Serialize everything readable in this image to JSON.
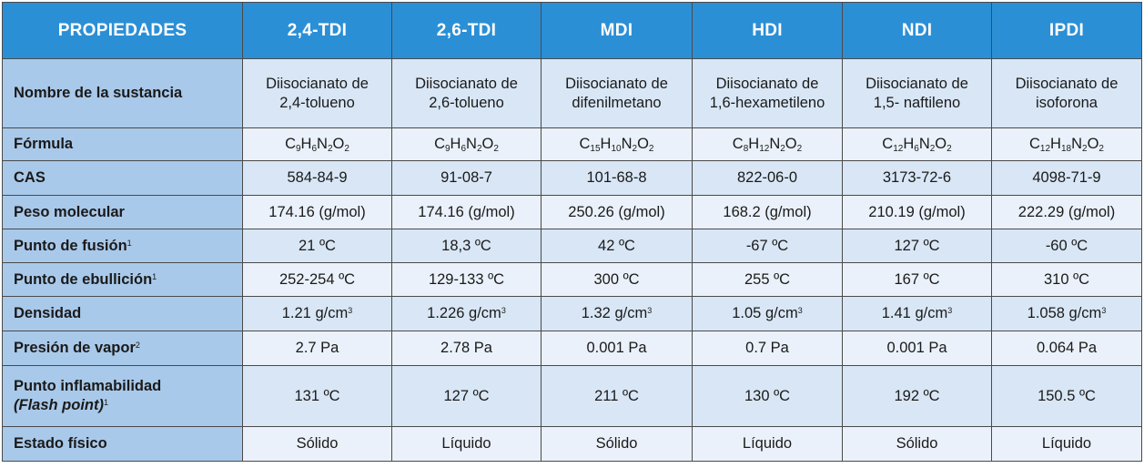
{
  "header": [
    "PROPIEDADES",
    "2,4-TDI",
    "2,6-TDI",
    "MDI",
    "HDI",
    "NDI",
    "IPDI"
  ],
  "rows": {
    "name": {
      "label": "Nombre de la sustancia",
      "cells": [
        [
          "Diisocianato de",
          "2,4-tolueno"
        ],
        [
          "Diisocianato de",
          "2,6-tolueno"
        ],
        [
          "Diisocianato de",
          "difenilmetano"
        ],
        [
          "Diisocianato de",
          "1,6-hexametileno"
        ],
        [
          "Diisocianato de",
          "1,5- naftileno"
        ],
        [
          "Diisocianato de",
          "isoforona"
        ]
      ]
    },
    "formula": {
      "label": "Fórmula",
      "cells": [
        [
          [
            "C",
            "9"
          ],
          [
            "H",
            "6"
          ],
          [
            "N",
            "2"
          ],
          [
            "O",
            "2"
          ]
        ],
        [
          [
            "C",
            "9"
          ],
          [
            "H",
            "6"
          ],
          [
            "N",
            "2"
          ],
          [
            "O",
            "2"
          ]
        ],
        [
          [
            "C",
            "15"
          ],
          [
            "H",
            "10"
          ],
          [
            "N",
            "2"
          ],
          [
            "O",
            "2"
          ]
        ],
        [
          [
            "C",
            "8"
          ],
          [
            "H",
            "12"
          ],
          [
            "N",
            "2"
          ],
          [
            "O",
            "2"
          ]
        ],
        [
          [
            "C",
            "12"
          ],
          [
            "H",
            "6"
          ],
          [
            "N",
            "2"
          ],
          [
            "O",
            "2"
          ]
        ],
        [
          [
            "C",
            "12"
          ],
          [
            "H",
            "18"
          ],
          [
            "N",
            "2"
          ],
          [
            "O",
            "2"
          ]
        ]
      ]
    },
    "cas": {
      "label": "CAS",
      "cells": [
        "584-84-9",
        "91-08-7",
        "101-68-8",
        "822-06-0",
        "3173-72-6",
        "4098-71-9"
      ]
    },
    "weight": {
      "label": "Peso molecular",
      "cells": [
        "174.16 (g/mol)",
        "174.16 (g/mol)",
        "250.26 (g/mol)",
        "168.2 (g/mol)",
        "210.19 (g/mol)",
        "222.29 (g/mol)"
      ]
    },
    "melting": {
      "label": "Punto de fusión",
      "ref": "1",
      "cells": [
        "21 ºC",
        "18,3 ºC",
        "42 ºC",
        "-67 ºC",
        "127 ºC",
        "-60 ºC"
      ]
    },
    "boiling": {
      "label": "Punto de ebullición",
      "ref": "1",
      "cells": [
        "252-254 ºC",
        "129-133 ºC",
        "300 ºC",
        "255 ºC",
        "167 ºC",
        "310 ºC"
      ]
    },
    "density": {
      "label": "Densidad",
      "unit": "g/cm",
      "unit_exp": "3",
      "cells": [
        "1.21",
        "1.226",
        "1.32",
        "1.05",
        "1.41",
        "1.058"
      ]
    },
    "vapor": {
      "label": "Presión de vapor",
      "ref": "2",
      "cells": [
        "2.7 Pa",
        "2.78 Pa",
        "0.001 Pa",
        "0.7 Pa",
        "0.001 Pa",
        "0.064 Pa"
      ]
    },
    "flash": {
      "label": "Punto inflamabilidad",
      "label2": "(Flash point)",
      "ref": "1",
      "cells": [
        "131 ºC",
        "127 ºC",
        "211 ºC",
        "130 ºC",
        "192 ºC",
        "150.5 ºC"
      ]
    },
    "state": {
      "label": "Estado físico",
      "cells": [
        "Sólido",
        "Líquido",
        "Sólido",
        "Líquido",
        "Sólido",
        "Líquido"
      ]
    }
  }
}
